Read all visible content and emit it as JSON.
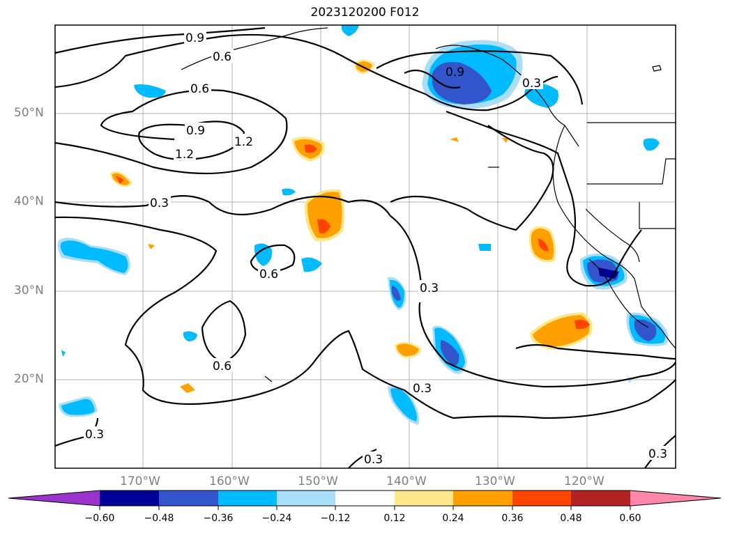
{
  "title": "2023120200 F012",
  "lat_labels": [
    "50°N",
    "40°N",
    "30°N",
    "20°N"
  ],
  "lon_labels": [
    "170°W",
    "160°W",
    "150°W",
    "140°W",
    "130°W",
    "120°W"
  ],
  "contour_labels": [
    "0.9",
    "0.6",
    "0.6",
    "0.9",
    "1.2",
    "1.2",
    "0.9",
    "0.3",
    "0.3",
    "0.6",
    "0.6",
    "0.3",
    "0.3",
    "0.3",
    "0.3",
    "0.3"
  ],
  "colorbar": {
    "ticks": [
      "−0.60",
      "−0.48",
      "−0.36",
      "−0.24",
      "−0.12",
      "0.12",
      "0.24",
      "0.36",
      "0.48",
      "0.60"
    ],
    "colors": [
      "#9933cc",
      "#000099",
      "#3355cc",
      "#00bbff",
      "#aaddf7",
      "#ffffff",
      "#ffe88c",
      "#ffa000",
      "#ff4400",
      "#b22222",
      "#ff88aa"
    ]
  },
  "map": {
    "projection": "lat-lon",
    "lon_range": [
      "180°W",
      "110°W"
    ],
    "lat_range": [
      "10°N",
      "60°N"
    ],
    "grid": true
  }
}
